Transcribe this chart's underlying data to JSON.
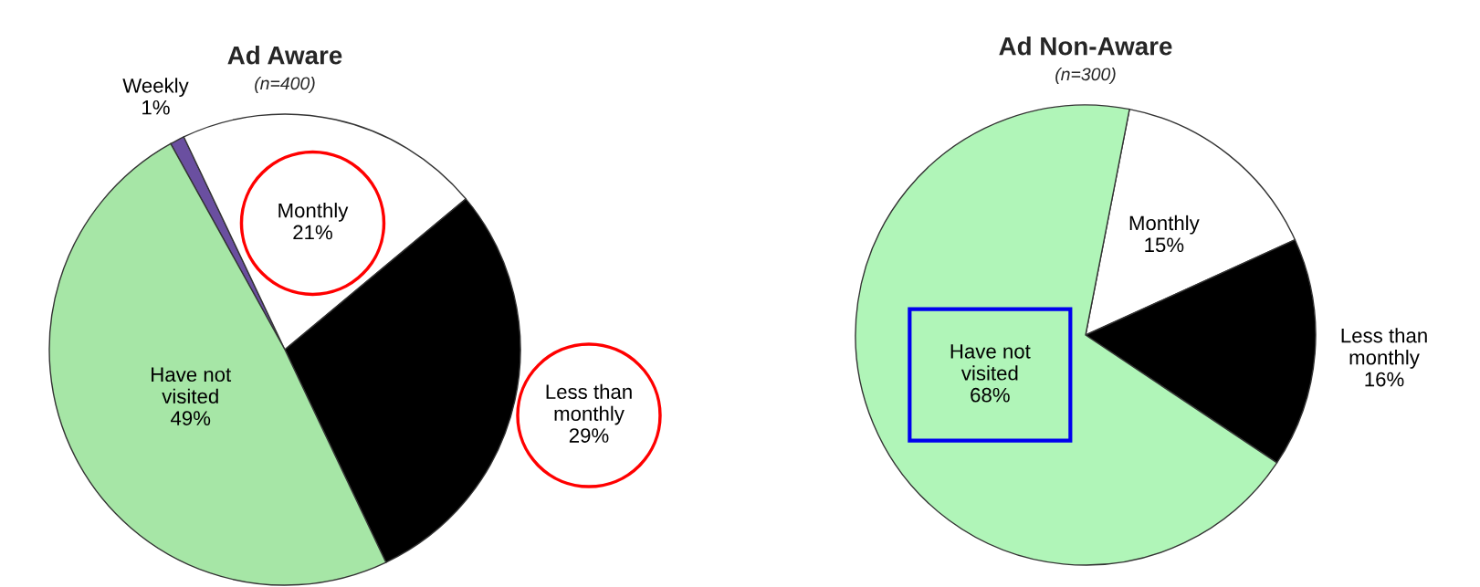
{
  "chart_data": [
    {
      "type": "pie",
      "title": "Ad Aware",
      "subtitle": "(n=400)",
      "categories": [
        "Weekly",
        "Monthly",
        "Less than monthly",
        "Have not visited"
      ],
      "values": [
        1,
        21,
        29,
        49
      ],
      "value_labels": [
        "1%",
        "21%",
        "29%",
        "49%"
      ],
      "colors": [
        "#6a4fa0",
        "#ffffff",
        "#000000",
        "#a6e6a6"
      ],
      "legend": false
    },
    {
      "type": "pie",
      "title": "Ad Non-Aware",
      "subtitle": "(n=300)",
      "categories": [
        "Monthly",
        "Less than monthly",
        "Have not visited"
      ],
      "values": [
        15,
        16,
        68
      ],
      "value_labels": [
        "15%",
        "16%",
        "68%"
      ],
      "colors": [
        "#ffffff",
        "#000000",
        "#b0f5b8"
      ],
      "legend": false
    }
  ]
}
